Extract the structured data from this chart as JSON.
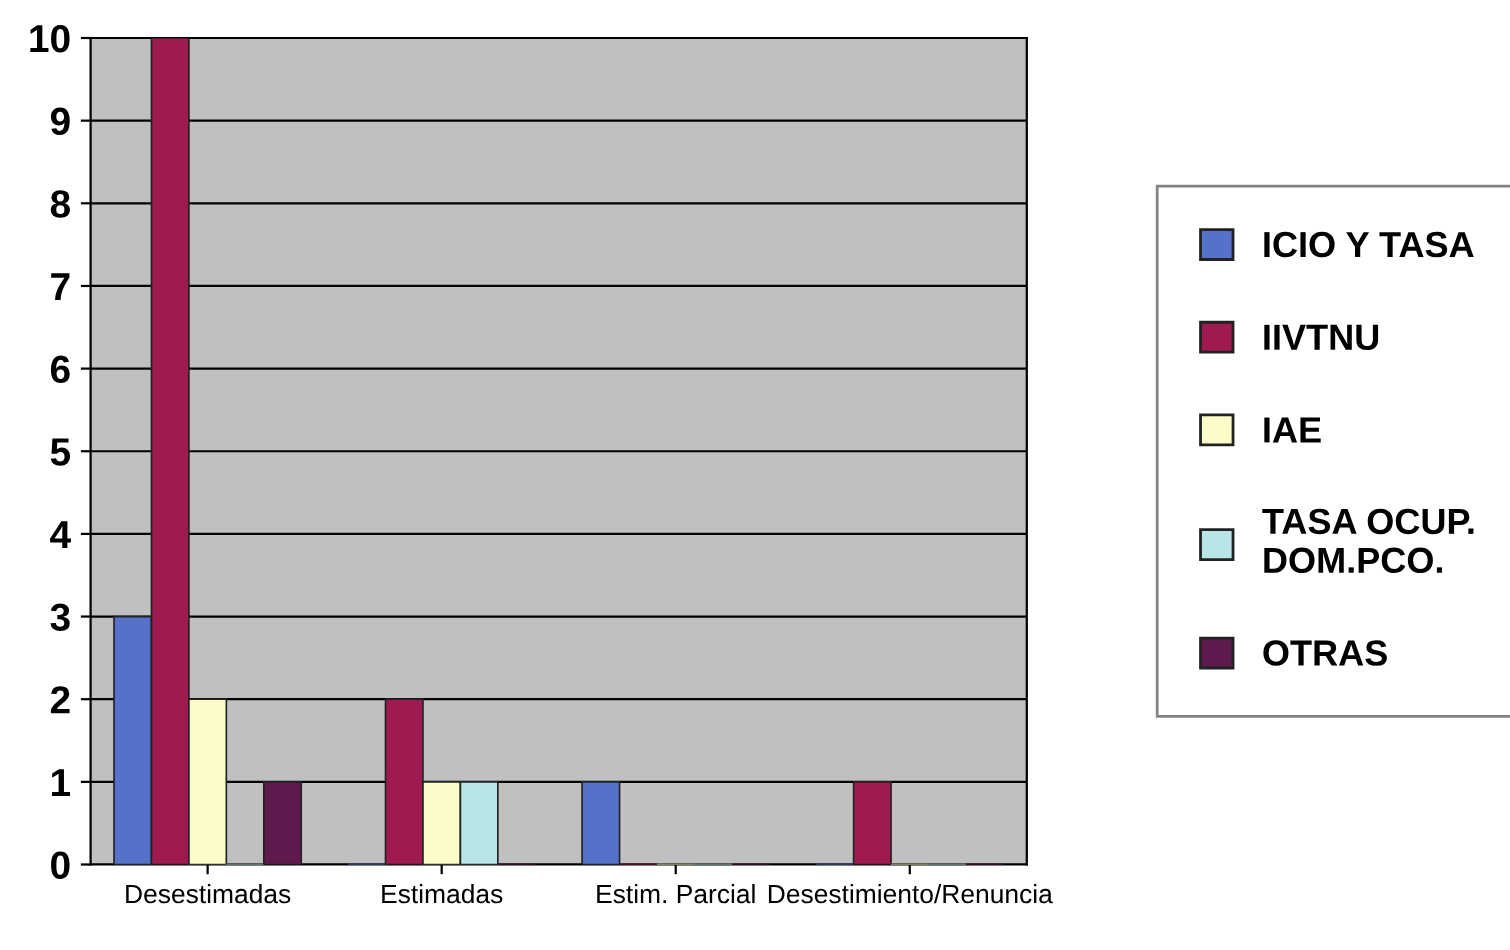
{
  "chart_data": {
    "type": "bar",
    "categories": [
      "Desestimadas",
      "Estimadas",
      "Estim. Parcial",
      "Desestimiento/Renuncia"
    ],
    "series": [
      {
        "name": "ICIO Y TASA",
        "color": "#5572c8",
        "values": [
          3,
          0,
          1,
          0
        ]
      },
      {
        "name": "IIVTNU",
        "color": "#9e1a50",
        "values": [
          10,
          2,
          0,
          1
        ]
      },
      {
        "name": "IAE",
        "color": "#fcfcc8",
        "values": [
          2,
          1,
          0,
          0
        ]
      },
      {
        "name": "TASA OCUP.\nDOM.PCO.",
        "color": "#b8e6e6",
        "values": [
          0,
          1,
          0,
          0
        ]
      },
      {
        "name": "OTRAS",
        "color": "#5e1a4c",
        "values": [
          1,
          0,
          0,
          0
        ]
      }
    ],
    "ylim": [
      0,
      10
    ],
    "yticks": [
      0,
      1,
      2,
      3,
      4,
      5,
      6,
      7,
      8,
      9,
      10
    ],
    "grid": "y",
    "legend": "right"
  }
}
